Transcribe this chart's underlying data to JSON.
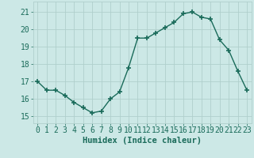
{
  "x": [
    0,
    1,
    2,
    3,
    4,
    5,
    6,
    7,
    8,
    9,
    10,
    11,
    12,
    13,
    14,
    15,
    16,
    17,
    18,
    19,
    20,
    21,
    22,
    23
  ],
  "y": [
    17.0,
    16.5,
    16.5,
    16.2,
    15.8,
    15.5,
    15.2,
    15.3,
    16.0,
    16.4,
    17.8,
    19.5,
    19.5,
    19.8,
    20.1,
    20.4,
    20.9,
    21.0,
    20.7,
    20.6,
    19.4,
    18.8,
    17.6,
    16.5
  ],
  "line_color": "#1a6b5a",
  "marker": "+",
  "marker_size": 4,
  "marker_lw": 1.2,
  "bg_color": "#cce8e6",
  "grid_color": "#b0cfcc",
  "ylabel_ticks": [
    15,
    16,
    17,
    18,
    19,
    20,
    21
  ],
  "xlabel": "Humidex (Indice chaleur)",
  "xlabel_fontsize": 7.5,
  "tick_fontsize": 7,
  "ylim": [
    14.6,
    21.6
  ],
  "xlim": [
    -0.5,
    23.5
  ],
  "line_width": 1.0
}
